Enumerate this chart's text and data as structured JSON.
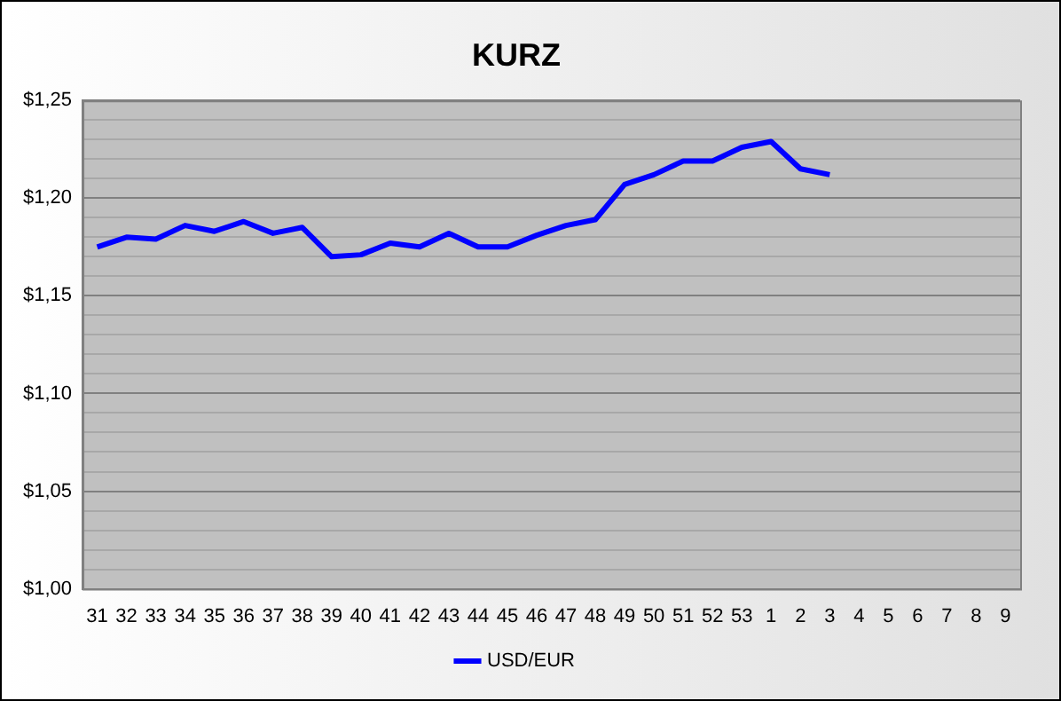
{
  "chart_data": {
    "type": "line",
    "title": "KURZ",
    "categories": [
      "31",
      "32",
      "33",
      "34",
      "35",
      "36",
      "37",
      "38",
      "39",
      "40",
      "41",
      "42",
      "43",
      "44",
      "45",
      "46",
      "47",
      "48",
      "49",
      "50",
      "51",
      "52",
      "53",
      "1",
      "2",
      "3",
      "4",
      "5",
      "6",
      "7",
      "8",
      "9"
    ],
    "series": [
      {
        "name": "USD/EUR",
        "color": "#0000ff",
        "values": [
          1.175,
          1.18,
          1.179,
          1.186,
          1.183,
          1.188,
          1.182,
          1.185,
          1.17,
          1.171,
          1.177,
          1.175,
          1.182,
          1.175,
          1.175,
          1.181,
          1.186,
          1.189,
          1.207,
          1.212,
          1.219,
          1.219,
          1.226,
          1.229,
          1.215,
          1.212,
          null,
          null,
          null,
          null,
          null,
          null
        ]
      }
    ],
    "ylim": [
      1.0,
      1.25
    ],
    "yticks": [
      {
        "value": 1.0,
        "label": "$1,00"
      },
      {
        "value": 1.01,
        "label": null
      },
      {
        "value": 1.02,
        "label": null
      },
      {
        "value": 1.03,
        "label": null
      },
      {
        "value": 1.04,
        "label": null
      },
      {
        "value": 1.05,
        "label": "$1,05"
      },
      {
        "value": 1.06,
        "label": null
      },
      {
        "value": 1.07,
        "label": null
      },
      {
        "value": 1.08,
        "label": null
      },
      {
        "value": 1.09,
        "label": null
      },
      {
        "value": 1.1,
        "label": "$1,10"
      },
      {
        "value": 1.11,
        "label": null
      },
      {
        "value": 1.12,
        "label": null
      },
      {
        "value": 1.13,
        "label": null
      },
      {
        "value": 1.14,
        "label": null
      },
      {
        "value": 1.15,
        "label": "$1,15"
      },
      {
        "value": 1.16,
        "label": null
      },
      {
        "value": 1.17,
        "label": null
      },
      {
        "value": 1.18,
        "label": null
      },
      {
        "value": 1.19,
        "label": null
      },
      {
        "value": 1.2,
        "label": "$1,20"
      },
      {
        "value": 1.21,
        "label": null
      },
      {
        "value": 1.22,
        "label": null
      },
      {
        "value": 1.23,
        "label": null
      },
      {
        "value": 1.24,
        "label": null
      },
      {
        "value": 1.25,
        "label": "$1,25"
      }
    ],
    "grid": "y",
    "legend": "bottom",
    "marker": "none",
    "line_style": "solid"
  }
}
